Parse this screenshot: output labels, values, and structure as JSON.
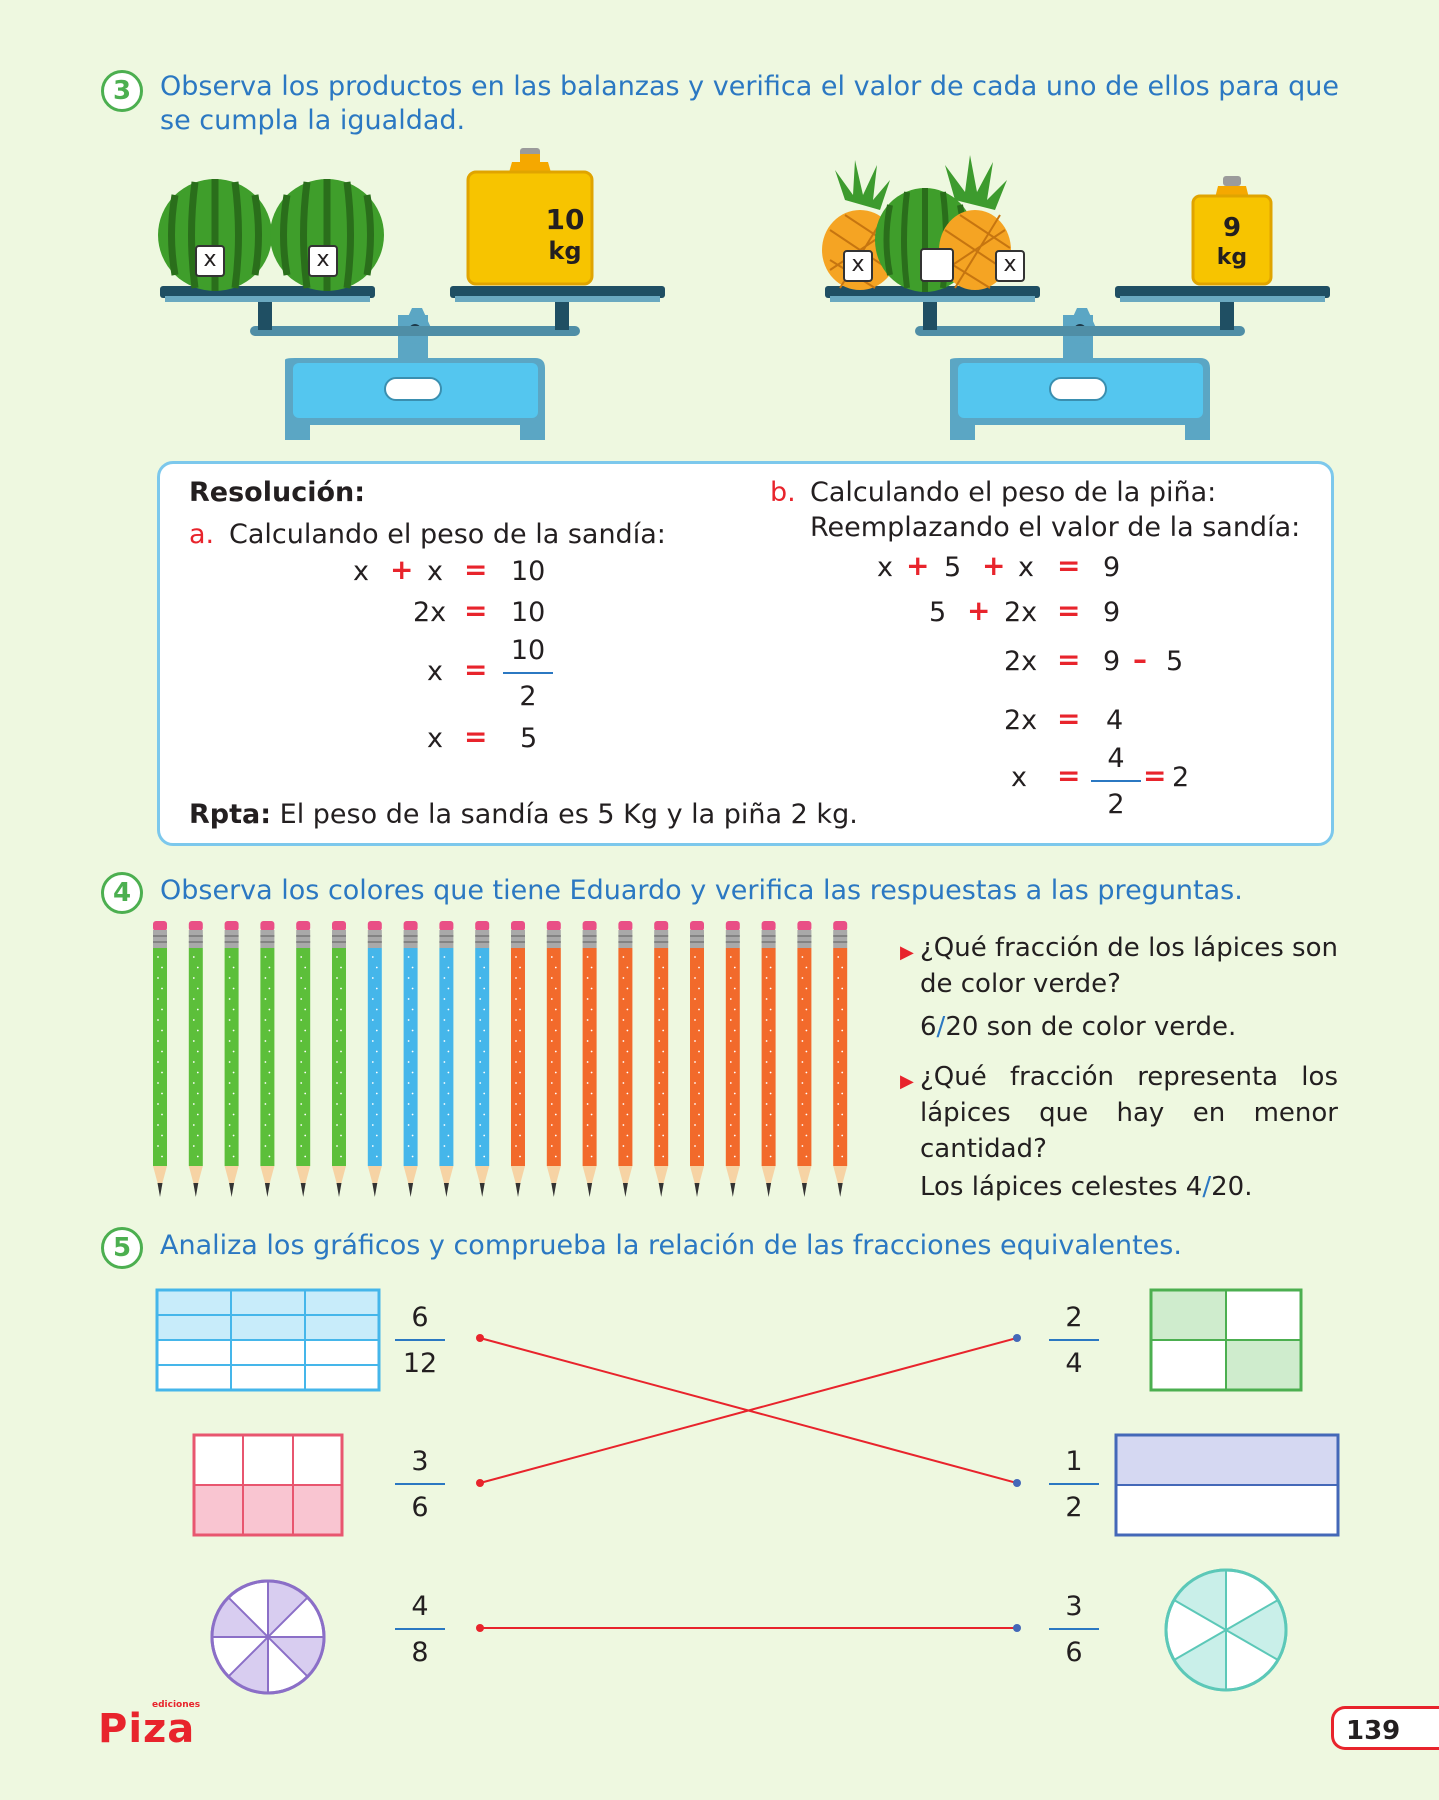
{
  "ex3": {
    "number": "3",
    "instruction": "Observa los productos en las balanzas y verifica el valor de cada uno de ellos para que se cumpla la igualdad.",
    "scale1": {
      "tag1": "x",
      "tag2": "x",
      "weight_num": "10",
      "weight_unit": "kg"
    },
    "scale2": {
      "tag1": "x",
      "tag2": "",
      "tag3": "x",
      "weight_num": "9",
      "weight_unit": "kg"
    },
    "resolution": {
      "title": "Resolución:",
      "a_letter": "a.",
      "a_text": "Calculando el peso de la sandía:",
      "a_lines": {
        "l1": [
          "x",
          "+",
          "x",
          "=",
          "10"
        ],
        "l2": [
          "2x",
          "=",
          "10"
        ],
        "l3": [
          "x",
          "=",
          "10",
          "2"
        ],
        "l4": [
          "x",
          "=",
          "5"
        ]
      },
      "b_letter": "b.",
      "b_text1": "Calculando el peso de la piña:",
      "b_text2": "Reemplazando el valor de la sandía:",
      "b_lines": {
        "l1": [
          "x",
          "+",
          "5",
          "+",
          "x",
          "=",
          "9"
        ],
        "l2": [
          "5",
          "+",
          "2x",
          "=",
          "9"
        ],
        "l3": [
          "2x",
          "=",
          "9",
          "–",
          "5"
        ],
        "l4": [
          "2x",
          "=",
          "4"
        ],
        "l5": [
          "x",
          "=",
          "4",
          "2",
          "=",
          "2"
        ]
      },
      "answer_label": "Rpta:",
      "answer_text": "El peso de la sandía es  5 Kg y la piña 2 kg."
    }
  },
  "ex4": {
    "number": "4",
    "instruction": "Observa los colores que tiene Eduardo y verifica las respuestas a las preguntas.",
    "pencils": {
      "green": 6,
      "blue": 4,
      "orange": 10
    },
    "colors": {
      "green": "#5cbf3a",
      "blue": "#45b6ea",
      "orange": "#f26a2b"
    },
    "q1": "¿Qué fracción de los lápices son de color verde?",
    "a1_num": "6",
    "a1_slash": "/",
    "a1_rest": "20 son de color verde.",
    "q2": "¿Qué fracción representa los lápices que hay en menor cantidad?",
    "a2_pre": "Los lápices celestes 4",
    "a2_slash": "/",
    "a2_rest": "20."
  },
  "ex5": {
    "number": "5",
    "instruction": "Analiza los gráficos y comprueba la relación de las fracciones equivalentes.",
    "left": [
      {
        "num": "6",
        "den": "12"
      },
      {
        "num": "3",
        "den": "6"
      },
      {
        "num": "4",
        "den": "8"
      }
    ],
    "right": [
      {
        "num": "2",
        "den": "4"
      },
      {
        "num": "1",
        "den": "2"
      },
      {
        "num": "3",
        "den": "6"
      }
    ]
  },
  "footer": {
    "logo": "Piza",
    "logo_small": "ediciones",
    "page_number": "139"
  }
}
